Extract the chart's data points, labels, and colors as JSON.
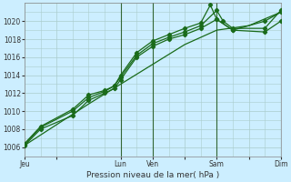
{
  "xlabel": "Pression niveau de la mer( hPa )",
  "bg_color": "#cceeff",
  "grid_color": "#aacccc",
  "line_color": "#1a6b1a",
  "ylim": [
    1005,
    1022
  ],
  "yticks": [
    1006,
    1008,
    1010,
    1012,
    1014,
    1016,
    1018,
    1020
  ],
  "xtick_labels": [
    "Jeu",
    "",
    "Lun",
    "Ven",
    "",
    "Sam",
    "",
    "Dim"
  ],
  "xtick_pos": [
    0,
    1,
    3,
    4,
    5,
    6,
    7,
    8
  ],
  "xlim": [
    0,
    8
  ],
  "vline_positions": [
    3,
    4,
    6,
    8
  ],
  "vline_color": "#336633",
  "series": [
    {
      "x": [
        0,
        0.5,
        1.5,
        2.0,
        2.5,
        2.8,
        3.0,
        3.5,
        4.0,
        4.5,
        5.0,
        5.5,
        6.0,
        6.5,
        7.5,
        8.0
      ],
      "y": [
        1006.2,
        1008.0,
        1009.5,
        1011.2,
        1012.0,
        1012.5,
        1013.5,
        1016.0,
        1017.2,
        1018.0,
        1018.5,
        1019.2,
        1020.2,
        1019.0,
        1020.0,
        1021.0
      ]
    },
    {
      "x": [
        0,
        0.5,
        1.5,
        2.0,
        2.5,
        2.8,
        3.0,
        3.5,
        4.0,
        4.5,
        5.0,
        5.5,
        6.0,
        6.2,
        6.5,
        7.5,
        8.0
      ],
      "y": [
        1006.3,
        1008.2,
        1010.0,
        1011.5,
        1012.2,
        1012.8,
        1013.8,
        1016.2,
        1017.5,
        1018.2,
        1018.8,
        1019.5,
        1021.2,
        1020.0,
        1019.2,
        1019.2,
        1021.2
      ]
    },
    {
      "x": [
        0,
        0.5,
        1.5,
        2.0,
        2.5,
        2.8,
        3.0,
        3.5,
        4.0,
        4.5,
        5.0,
        5.5,
        5.8,
        6.0,
        6.5,
        7.5,
        8.0
      ],
      "y": [
        1006.4,
        1008.3,
        1010.2,
        1011.8,
        1012.3,
        1012.8,
        1014.0,
        1016.5,
        1017.8,
        1018.5,
        1019.2,
        1019.8,
        1021.8,
        1020.2,
        1019.0,
        1018.8,
        1020.0
      ]
    },
    {
      "x": [
        0,
        1.0,
        2.0,
        3.0,
        4.0,
        5.0,
        6.0,
        7.0,
        8.0
      ],
      "y": [
        1006.2,
        1008.5,
        1010.8,
        1013.0,
        1015.2,
        1017.4,
        1019.0,
        1019.5,
        1021.0
      ]
    }
  ],
  "figsize": [
    3.2,
    2.0
  ],
  "dpi": 100
}
